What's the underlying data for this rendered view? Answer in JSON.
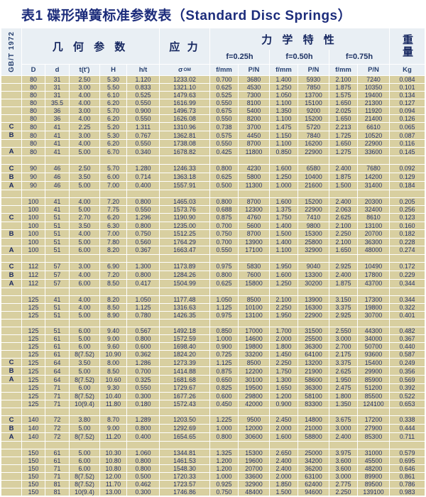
{
  "title": "表1 碟形弹簧标准参数表（Standard Disc Springs）",
  "standard_label": "GB/T 1972",
  "header": {
    "group_geometry": "几 何 参 数",
    "group_stress": "应 力",
    "group_mechanical": "力 学 特 性",
    "group_weight": "重量",
    "levels": [
      "f=0.25h",
      "f=0.50h",
      "f=0.75h"
    ],
    "columns": [
      "D",
      "d",
      "t(t′)",
      "H",
      "h/t",
      "σ",
      "f/mm",
      "P/N",
      "f/mm",
      "P/N",
      "f/mm",
      "P/N",
      "Kg"
    ],
    "sigma_sub": "OM"
  },
  "colors": {
    "title_text": "#1c2c7b",
    "header_bg": "#e9eff4",
    "header_text": "#15265f",
    "cell_bg": "#d8cfa0",
    "cell_text": "#232f6a",
    "grid": "#ffffff"
  },
  "table": {
    "rows": [
      {
        "mark": "",
        "v": [
          "80",
          "31",
          "2.50",
          "5.30",
          "1.120",
          "1233.02",
          "0.700",
          "3680",
          "1.400",
          "5930",
          "2.100",
          "7240",
          "0.084"
        ]
      },
      {
        "mark": "",
        "v": [
          "80",
          "31",
          "3.00",
          "5.50",
          "0.833",
          "1321.10",
          "0.625",
          "4530",
          "1.250",
          "7850",
          "1.875",
          "10350",
          "0.101"
        ]
      },
      {
        "mark": "",
        "v": [
          "80",
          "31",
          "4.00",
          "6.10",
          "0.525",
          "1479.63",
          "0.525",
          "7300",
          "1.050",
          "13700",
          "1.575",
          "19400",
          "0.134"
        ]
      },
      {
        "mark": "",
        "v": [
          "80",
          "35.5",
          "4.00",
          "6.20",
          "0.550",
          "1616.99",
          "0.550",
          "8100",
          "1.100",
          "15100",
          "1.650",
          "21300",
          "0.127"
        ]
      },
      {
        "mark": "",
        "v": [
          "80",
          "36",
          "3.00",
          "5.70",
          "0.900",
          "1496.73",
          "0.675",
          "5400",
          "1.350",
          "9200",
          "2.025",
          "11920",
          "0.094"
        ]
      },
      {
        "mark": "",
        "v": [
          "80",
          "36",
          "4.00",
          "6.20",
          "0.550",
          "1626.08",
          "0.550",
          "8200",
          "1.100",
          "15200",
          "1.650",
          "21400",
          "0.126"
        ]
      },
      {
        "mark": "C",
        "v": [
          "80",
          "41",
          "2.25",
          "5.20",
          "1.311",
          "1310.96",
          "0.738",
          "3700",
          "1.475",
          "5720",
          "2.213",
          "6610",
          "0.065"
        ]
      },
      {
        "mark": "B",
        "v": [
          "80",
          "41",
          "3.00",
          "5.30",
          "0.767",
          "1362.81",
          "0.575",
          "4450",
          "1.150",
          "7840",
          "1.725",
          "10520",
          "0.087"
        ]
      },
      {
        "mark": "",
        "v": [
          "80",
          "41",
          "4.00",
          "6.20",
          "0.550",
          "1738.08",
          "0.550",
          "8700",
          "1.100",
          "16200",
          "1.650",
          "22900",
          "0.116"
        ]
      },
      {
        "mark": "A",
        "v": [
          "80",
          "41",
          "5.00",
          "6.70",
          "0.340",
          "1678.82",
          "0.425",
          "11800",
          "0.850",
          "22900",
          "1.275",
          "33600",
          "0.145"
        ]
      },
      {
        "spacer": true
      },
      {
        "mark": "C",
        "v": [
          "90",
          "46",
          "2.50",
          "5.70",
          "1.280",
          "1246.33",
          "0.800",
          "4230",
          "1.600",
          "6580",
          "2.400",
          "7680",
          "0.092"
        ]
      },
      {
        "mark": "B",
        "v": [
          "90",
          "46",
          "3.50",
          "6.00",
          "0.714",
          "1363.18",
          "0.625",
          "5800",
          "1.250",
          "10400",
          "1.875",
          "14200",
          "0.129"
        ]
      },
      {
        "mark": "A",
        "v": [
          "90",
          "46",
          "5.00",
          "7.00",
          "0.400",
          "1557.91",
          "0.500",
          "11300",
          "1.000",
          "21600",
          "1.500",
          "31400",
          "0.184"
        ]
      },
      {
        "spacer": true
      },
      {
        "mark": "",
        "v": [
          "100",
          "41",
          "4.00",
          "7.20",
          "0.800",
          "1465.03",
          "0.800",
          "8700",
          "1.600",
          "15200",
          "2.400",
          "20300",
          "0.205"
        ]
      },
      {
        "mark": "",
        "v": [
          "100",
          "41",
          "5.00",
          "7.75",
          "0.550",
          "1573.76",
          "0.688",
          "12300",
          "1.375",
          "22900",
          "2.063",
          "32400",
          "0.256"
        ]
      },
      {
        "mark": "C",
        "v": [
          "100",
          "51",
          "2.70",
          "6.20",
          "1.296",
          "1190.90",
          "0.875",
          "4760",
          "1.750",
          "7410",
          "2.625",
          "8610",
          "0.123"
        ]
      },
      {
        "mark": "",
        "v": [
          "100",
          "51",
          "3.50",
          "6.30",
          "0.800",
          "1235.00",
          "0.700",
          "5600",
          "1.400",
          "9800",
          "2.100",
          "13100",
          "0.160"
        ]
      },
      {
        "mark": "B",
        "v": [
          "100",
          "51",
          "4.00",
          "7.00",
          "0.750",
          "1512.25",
          "0.750",
          "8700",
          "1.500",
          "15300",
          "2.250",
          "20700",
          "0.182"
        ]
      },
      {
        "mark": "",
        "v": [
          "100",
          "51",
          "5.00",
          "7.80",
          "0.560",
          "1764.29",
          "0.700",
          "13900",
          "1.400",
          "25800",
          "2.100",
          "36300",
          "0.228"
        ]
      },
      {
        "mark": "A",
        "v": [
          "100",
          "51",
          "6.00",
          "8.20",
          "0.367",
          "1663.47",
          "0.550",
          "17100",
          "1.100",
          "32900",
          "1.650",
          "48000",
          "0.274"
        ]
      },
      {
        "spacer": true
      },
      {
        "mark": "C",
        "v": [
          "112",
          "57",
          "3.00",
          "6.90",
          "1.300",
          "1173.89",
          "0.975",
          "5830",
          "1.950",
          "9040",
          "2.925",
          "10490",
          "0.172"
        ]
      },
      {
        "mark": "B",
        "v": [
          "112",
          "57",
          "4.00",
          "7.20",
          "0.800",
          "1284.26",
          "0.800",
          "7600",
          "1.600",
          "13300",
          "2.400",
          "17800",
          "0.229"
        ]
      },
      {
        "mark": "A",
        "v": [
          "112",
          "57",
          "6.00",
          "8.50",
          "0.417",
          "1504.99",
          "0.625",
          "15800",
          "1.250",
          "30200",
          "1.875",
          "43700",
          "0.344"
        ]
      },
      {
        "spacer": true
      },
      {
        "mark": "",
        "v": [
          "125",
          "41",
          "4.00",
          "8.20",
          "1.050",
          "1177.48",
          "1.050",
          "8500",
          "2.100",
          "13900",
          "3.150",
          "17300",
          "0.344"
        ]
      },
      {
        "mark": "",
        "v": [
          "125",
          "51",
          "4.00",
          "8.50",
          "1.125",
          "1316.63",
          "1.125",
          "10100",
          "2.250",
          "16300",
          "3.375",
          "19800",
          "0.322"
        ]
      },
      {
        "mark": "",
        "v": [
          "125",
          "51",
          "5.00",
          "8.90",
          "0.780",
          "1426.35",
          "0.975",
          "13100",
          "1.950",
          "22900",
          "2.925",
          "30700",
          "0.401"
        ]
      },
      {
        "spacer": true
      },
      {
        "mark": "",
        "v": [
          "125",
          "51",
          "6.00",
          "9.40",
          "0.567",
          "1492.18",
          "0.850",
          "17000",
          "1.700",
          "31500",
          "2.550",
          "44300",
          "0.482"
        ]
      },
      {
        "mark": "",
        "v": [
          "125",
          "61",
          "5.00",
          "9.00",
          "0.800",
          "1572.59",
          "1.000",
          "14600",
          "2.000",
          "25500",
          "3.000",
          "34000",
          "0.367"
        ]
      },
      {
        "mark": "",
        "v": [
          "125",
          "61",
          "6.00",
          "9.60",
          "0.600",
          "1698.40",
          "0.900",
          "19800",
          "1.800",
          "36300",
          "2.700",
          "50700",
          "0.440"
        ]
      },
      {
        "mark": "",
        "v": [
          "125",
          "61",
          "8(7.52)",
          "10.90",
          "0.362",
          "1824.20",
          "0.725",
          "33200",
          "1.450",
          "64100",
          "2.175",
          "93600",
          "0.587"
        ]
      },
      {
        "mark": "C",
        "v": [
          "125",
          "64",
          "3.50",
          "8.00",
          "1.286",
          "1273.39",
          "1.125",
          "8500",
          "2.250",
          "13200",
          "3.375",
          "15400",
          "0.249"
        ]
      },
      {
        "mark": "B",
        "v": [
          "125",
          "64",
          "5.00",
          "8.50",
          "0.700",
          "1414.88",
          "0.875",
          "12200",
          "1.750",
          "21900",
          "2.625",
          "29900",
          "0.356"
        ]
      },
      {
        "mark": "A",
        "v": [
          "125",
          "64",
          "8(7.52)",
          "10.60",
          "0.325",
          "1681.68",
          "0.650",
          "30100",
          "1.300",
          "58600",
          "1.950",
          "85900",
          "0.569"
        ]
      },
      {
        "mark": "",
        "v": [
          "125",
          "71",
          "6.00",
          "9.30",
          "0.550",
          "1729.67",
          "0.825",
          "19500",
          "1.650",
          "36300",
          "2.475",
          "51200",
          "0.392"
        ]
      },
      {
        "mark": "",
        "v": [
          "125",
          "71",
          "8(7.52)",
          "10.40",
          "0.300",
          "1677.26",
          "0.600",
          "29800",
          "1.200",
          "58100",
          "1.800",
          "85500",
          "0.522"
        ]
      },
      {
        "mark": "",
        "v": [
          "125",
          "71",
          "10(9.4)",
          "11.80",
          "0.180",
          "1572.43",
          "0.450",
          "42000",
          "0.900",
          "83300",
          "1.350",
          "124100",
          "0.653"
        ]
      },
      {
        "spacer": true
      },
      {
        "mark": "C",
        "v": [
          "140",
          "72",
          "3.80",
          "8.70",
          "1.289",
          "1203.50",
          "1.225",
          "9500",
          "2.450",
          "14800",
          "3.675",
          "17200",
          "0.338"
        ]
      },
      {
        "mark": "B",
        "v": [
          "140",
          "72",
          "5.00",
          "9.00",
          "0.800",
          "1292.69",
          "1.000",
          "12000",
          "2.000",
          "21000",
          "3.000",
          "27900",
          "0.444"
        ]
      },
      {
        "mark": "A",
        "v": [
          "140",
          "72",
          "8(7.52)",
          "11.20",
          "0.400",
          "1654.65",
          "0.800",
          "30600",
          "1.600",
          "58800",
          "2.400",
          "85300",
          "0.711"
        ]
      },
      {
        "spacer": true
      },
      {
        "mark": "",
        "v": [
          "150",
          "61",
          "5.00",
          "10.30",
          "1.060",
          "1344.81",
          "1.325",
          "15300",
          "2.650",
          "25000",
          "3.975",
          "31000",
          "0.579"
        ]
      },
      {
        "mark": "",
        "v": [
          "150",
          "61",
          "6.00",
          "10.80",
          "0.800",
          "1461.53",
          "1.200",
          "19600",
          "2.400",
          "34200",
          "3.600",
          "45500",
          "0.695"
        ]
      },
      {
        "mark": "",
        "v": [
          "150",
          "71",
          "6.00",
          "10.80",
          "0.800",
          "1548.30",
          "1.200",
          "20700",
          "2.400",
          "36200",
          "3.600",
          "48200",
          "0.646"
        ]
      },
      {
        "mark": "",
        "v": [
          "150",
          "71",
          "8(7.52)",
          "12.00",
          "0.500",
          "1720.33",
          "1.000",
          "33600",
          "2.000",
          "63100",
          "3.000",
          "89900",
          "0.861"
        ]
      },
      {
        "mark": "",
        "v": [
          "150",
          "81",
          "8(7.52)",
          "11.70",
          "0.462",
          "1723.57",
          "0.925",
          "32900",
          "1.850",
          "62400",
          "2.775",
          "89500",
          "0.786"
        ]
      },
      {
        "mark": "",
        "v": [
          "150",
          "81",
          "10(9.4)",
          "13.00",
          "0.300",
          "1746.86",
          "0.750",
          "48400",
          "1.500",
          "94600",
          "2.250",
          "139100",
          "0.983"
        ]
      }
    ]
  }
}
